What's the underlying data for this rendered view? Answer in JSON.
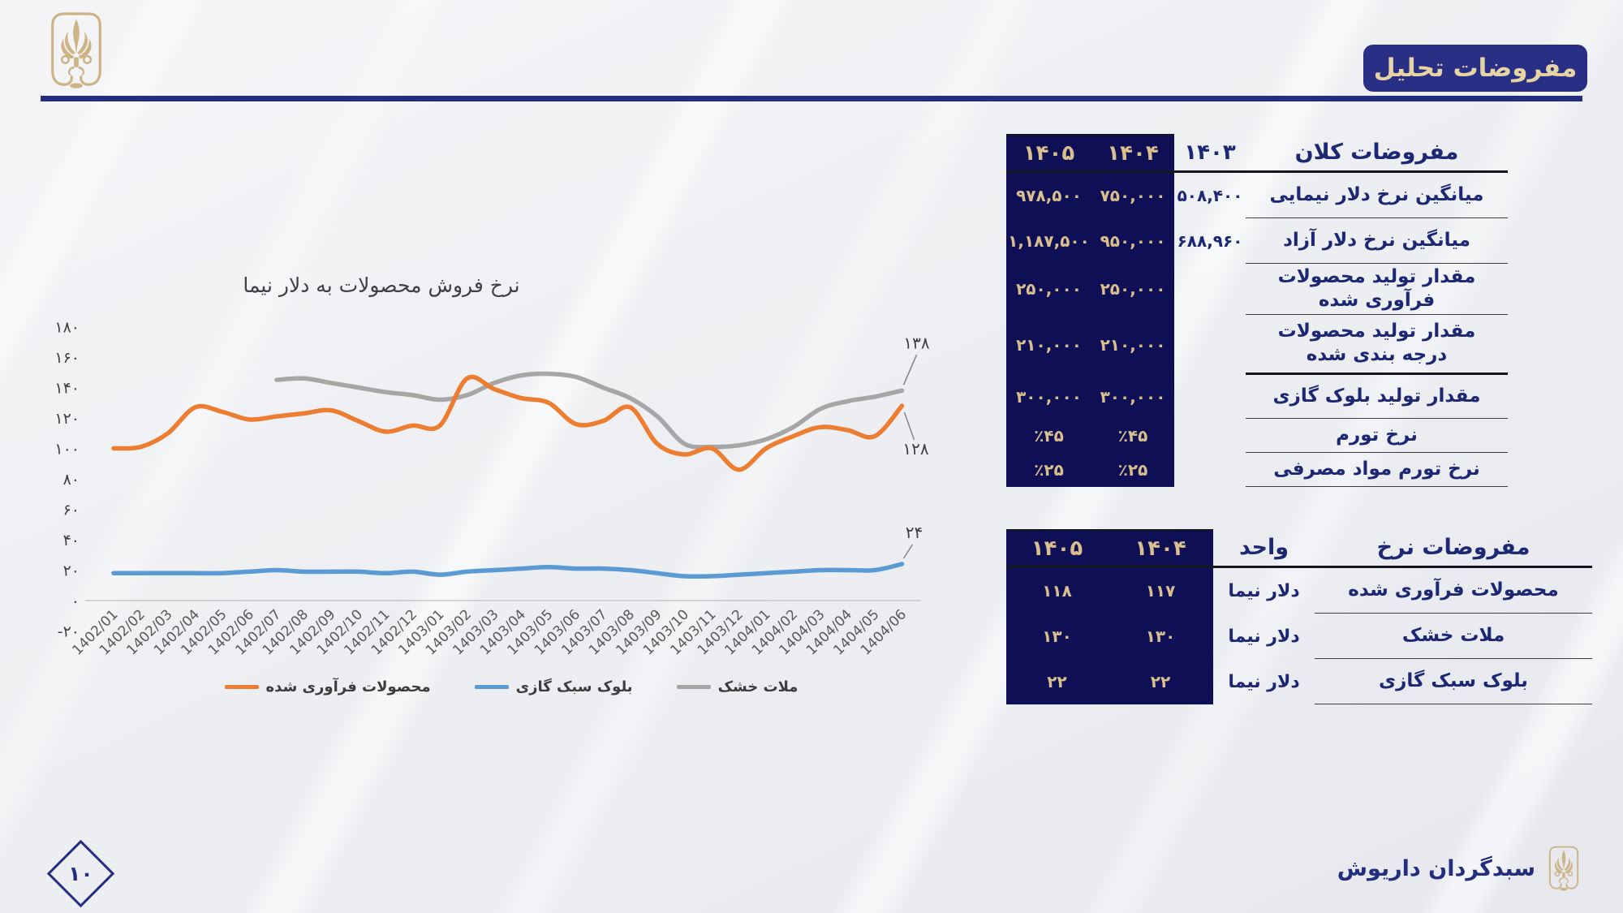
{
  "slide": {
    "title_badge": "مفروضات تحلیل",
    "page_number": "۱۰",
    "footer_brand": "سبدگردان داریوش"
  },
  "colors": {
    "navy": "#232e7e",
    "badge_bg": "#2a2f86",
    "table_navy_bg": "#0f0f55",
    "gold_text": "#d9be8e",
    "logo_gold": "#cdb386",
    "series_orange": "#ed7d31",
    "series_blue": "#5b9bd5",
    "series_gray": "#a6a6a6"
  },
  "macro_table": {
    "title": "مفروضات کلان",
    "col_headers": [
      "۱۴۰۳",
      "۱۴۰۴",
      "۱۴۰۵"
    ],
    "rows": [
      {
        "label": "میانگین نرخ دلار نیمایی",
        "y1403": "۵۰۸,۴۰۰",
        "y1404": "۷۵۰,۰۰۰",
        "y1405": "۹۷۸,۵۰۰"
      },
      {
        "label": "میانگین نرخ دلار آزاد",
        "y1403": "۶۸۸,۹۶۰",
        "y1404": "۹۵۰,۰۰۰",
        "y1405": "۱,۱۸۷,۵۰۰"
      },
      {
        "label": "مقدار تولید محصولات فرآوری شده",
        "y1403": "",
        "y1404": "۲۵۰,۰۰۰",
        "y1405": "۲۵۰,۰۰۰"
      },
      {
        "label": "مقدار تولید محصولات درجه بندی شده",
        "y1403": "",
        "y1404": "۲۱۰,۰۰۰",
        "y1405": "۲۱۰,۰۰۰"
      },
      {
        "label": "مقدار تولید بلوک گازی",
        "y1403": "",
        "y1404": "۳۰۰,۰۰۰",
        "y1405": "۳۰۰,۰۰۰"
      },
      {
        "label": "نرخ تورم",
        "y1403": "",
        "y1404": "٪۴۵",
        "y1405": "٪۴۵"
      },
      {
        "label": "نرخ تورم مواد مصرفی",
        "y1403": "",
        "y1404": "٪۲۵",
        "y1405": "٪۲۵"
      }
    ]
  },
  "rate_table": {
    "title": "مفروضات نرخ",
    "unit_header": "واحد",
    "col_headers": [
      "۱۴۰۴",
      "۱۴۰۵"
    ],
    "rows": [
      {
        "label": "محصولات فرآوری شده",
        "unit": "دلار نیما",
        "y1404": "۱۱۷",
        "y1405": "۱۱۸"
      },
      {
        "label": "ملات خشک",
        "unit": "دلار نیما",
        "y1404": "۱۳۰",
        "y1405": "۱۳۰"
      },
      {
        "label": "بلوک سبک گازی",
        "unit": "دلار نیما",
        "y1404": "۲۲",
        "y1405": "۲۲"
      }
    ]
  },
  "chart_data": {
    "type": "line",
    "title": "نرخ فروش محصولات به دلار نیما",
    "grid": false,
    "legend_position": "bottom",
    "ylim": [
      -20,
      180
    ],
    "ytick_step": 20,
    "ytick_labels": [
      "۱۸۰",
      "۱۶۰",
      "۱۴۰",
      "۱۲۰",
      "۱۰۰",
      "۸۰",
      "۶۰",
      "۴۰",
      "۲۰",
      "۰",
      "-۲۰"
    ],
    "x": [
      "1402/01",
      "1402/02",
      "1402/03",
      "1402/04",
      "1402/05",
      "1402/06",
      "1402/07",
      "1402/08",
      "1402/09",
      "1402/10",
      "1402/11",
      "1402/12",
      "1403/01",
      "1403/02",
      "1403/03",
      "1403/04",
      "1403/05",
      "1403/06",
      "1403/07",
      "1403/08",
      "1403/09",
      "1403/10",
      "1403/11",
      "1403/12",
      "1404/01",
      "1404/02",
      "1404/03",
      "1404/04",
      "1404/05",
      "1404/06"
    ],
    "series": [
      {
        "name": "محصولات فرآوری شده",
        "color": "#ed7d31",
        "end_label": "۱۲۸",
        "values": [
          100,
          101,
          110,
          127,
          124,
          119,
          121,
          123,
          125,
          118,
          111,
          115,
          115,
          146,
          139,
          133,
          130,
          116,
          118,
          127,
          103,
          96,
          100,
          86,
          100,
          108,
          114,
          112,
          108,
          128
        ]
      },
      {
        "name": "بلوک سبک گازی",
        "color": "#5b9bd5",
        "end_label": "۲۴",
        "values": [
          18,
          18,
          18,
          18,
          18,
          19,
          20,
          19,
          19,
          19,
          18,
          19,
          17,
          19,
          20,
          21,
          22,
          21,
          21,
          20,
          18,
          16,
          16,
          17,
          18,
          19,
          20,
          20,
          20,
          24
        ]
      },
      {
        "name": "ملات خشک",
        "color": "#a6a6a6",
        "end_label": "۱۳۸",
        "values": [
          null,
          null,
          null,
          null,
          null,
          null,
          145,
          146,
          143,
          140,
          137,
          135,
          132,
          135,
          143,
          148,
          149,
          147,
          140,
          133,
          121,
          103,
          101,
          102,
          106,
          114,
          126,
          131,
          134,
          138
        ]
      }
    ]
  }
}
